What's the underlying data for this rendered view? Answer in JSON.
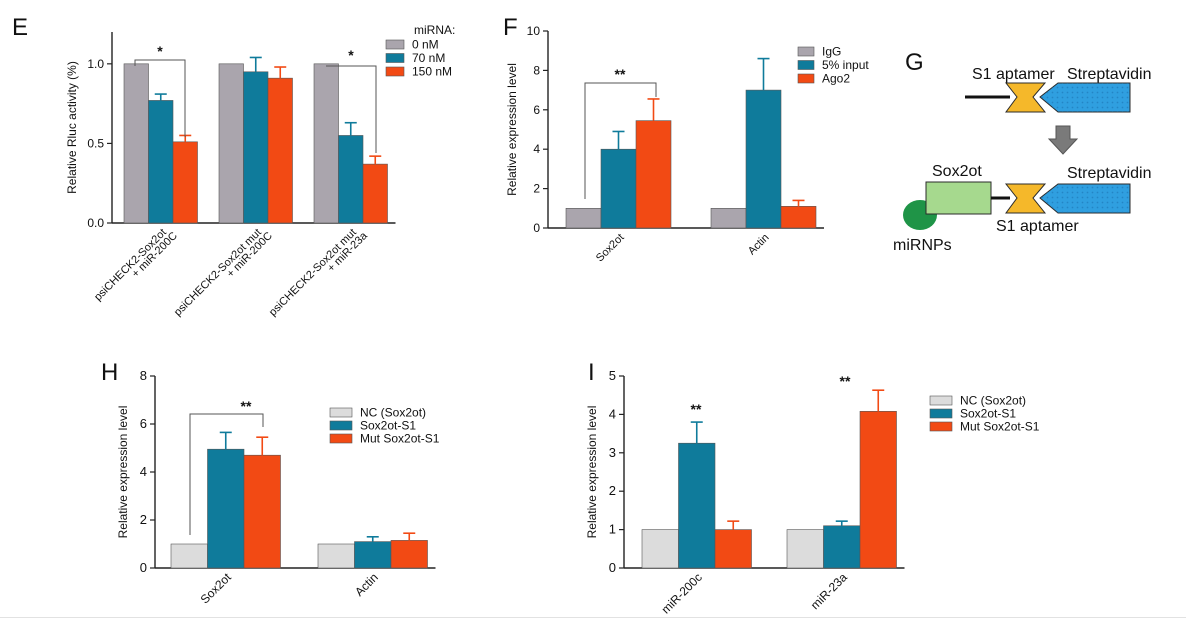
{
  "chart_data": [
    {
      "panel": "E",
      "type": "bar",
      "ylabel": "Relative Rluc activity (%)",
      "ylim": [
        0,
        1.2
      ],
      "yticks": [
        "0.0",
        "0.5",
        "1.0"
      ],
      "categories": [
        [
          "psiCHECK2-Sox2ot",
          "+ miR-200C"
        ],
        [
          "psiCHECK2-Sox2ot mut",
          "+ miR-200C"
        ],
        [
          "psiCHECK2-Sox2ot mut",
          "+ miR-23a"
        ]
      ],
      "legend_title": "miRNA:",
      "legend_position": "top-right",
      "series": [
        {
          "name": "0 nM",
          "color": "#aaa5ad",
          "values": [
            1.0,
            1.0,
            1.0
          ],
          "errors": [
            0,
            0,
            0
          ]
        },
        {
          "name": "70 nM",
          "color": "#0f7b9b",
          "values": [
            0.77,
            0.95,
            0.55
          ],
          "errors": [
            0.04,
            0.09,
            0.08
          ]
        },
        {
          "name": "150 nM",
          "color": "#f24a14",
          "values": [
            0.51,
            0.91,
            0.37
          ],
          "errors": [
            0.04,
            0.07,
            0.05
          ]
        }
      ],
      "annotations": [
        "*",
        "*"
      ]
    },
    {
      "panel": "F",
      "type": "bar",
      "ylabel": "Relative expression level",
      "ylim": [
        0,
        10
      ],
      "yticks": [
        "0",
        "2",
        "4",
        "6",
        "8",
        "10"
      ],
      "categories": [
        "Sox2ot",
        "Actin"
      ],
      "legend_position": "top-right",
      "series": [
        {
          "name": "IgG",
          "color": "#aaa5ad",
          "values": [
            1.0,
            1.0
          ],
          "errors": [
            0,
            0
          ]
        },
        {
          "name": "5% input",
          "color": "#0f7b9b",
          "values": [
            4.0,
            7.0
          ],
          "errors": [
            0.9,
            1.6
          ]
        },
        {
          "name": "Ago2",
          "color": "#f24a14",
          "values": [
            5.45,
            1.1
          ],
          "errors": [
            1.1,
            0.3
          ]
        }
      ],
      "annotations": [
        "**"
      ]
    },
    {
      "panel": "H",
      "type": "bar",
      "ylabel": "Relative expression level",
      "ylim": [
        0,
        8
      ],
      "yticks": [
        "0",
        "2",
        "4",
        "6",
        "8"
      ],
      "categories": [
        "Sox2ot",
        "Actin"
      ],
      "legend_position": "top-right",
      "series": [
        {
          "name": "NC (Sox2ot)",
          "color": "#dcdcdc",
          "values": [
            1.0,
            1.0
          ],
          "errors": [
            0,
            0
          ]
        },
        {
          "name": "Sox2ot-S1",
          "color": "#0f7b9b",
          "values": [
            4.95,
            1.1
          ],
          "errors": [
            0.7,
            0.2
          ]
        },
        {
          "name": "Mut Sox2ot-S1",
          "color": "#f24a14",
          "values": [
            4.7,
            1.15
          ],
          "errors": [
            0.75,
            0.3
          ]
        }
      ],
      "annotations": [
        "**"
      ]
    },
    {
      "panel": "I",
      "type": "bar",
      "ylabel": "Relative expression level",
      "ylim": [
        0,
        5
      ],
      "yticks": [
        "0",
        "1",
        "2",
        "3",
        "4",
        "5"
      ],
      "categories": [
        "miR-200c",
        "miR-23a"
      ],
      "legend_position": "top-right",
      "series": [
        {
          "name": "NC (Sox2ot)",
          "color": "#dcdcdc",
          "values": [
            1.0,
            1.0
          ],
          "errors": [
            0,
            0
          ]
        },
        {
          "name": "Sox2ot-S1",
          "color": "#0f7b9b",
          "values": [
            3.25,
            1.1
          ],
          "errors": [
            0.55,
            0.12
          ]
        },
        {
          "name": "Mut Sox2ot-S1",
          "color": "#f24a14",
          "values": [
            1.0,
            4.08
          ],
          "errors": [
            0.22,
            0.55
          ]
        }
      ],
      "annotations": [
        "**",
        "**"
      ]
    }
  ],
  "diagram_g": {
    "panel": "G",
    "labels": {
      "s1_top": "S1 aptamer",
      "strep_top": "Streptavidin",
      "sox2ot": "Sox2ot",
      "strep_bottom": "Streptavidin",
      "s1_bottom": "S1 aptamer",
      "mirnps": "miRNPs"
    },
    "colors": {
      "aptamer": "#f5b82a",
      "streptavidin": "#2f9fe0",
      "sox2ot_box": "#a6d98e",
      "mirnps": "#1f9447",
      "arrow": "#7a7a7a"
    }
  }
}
